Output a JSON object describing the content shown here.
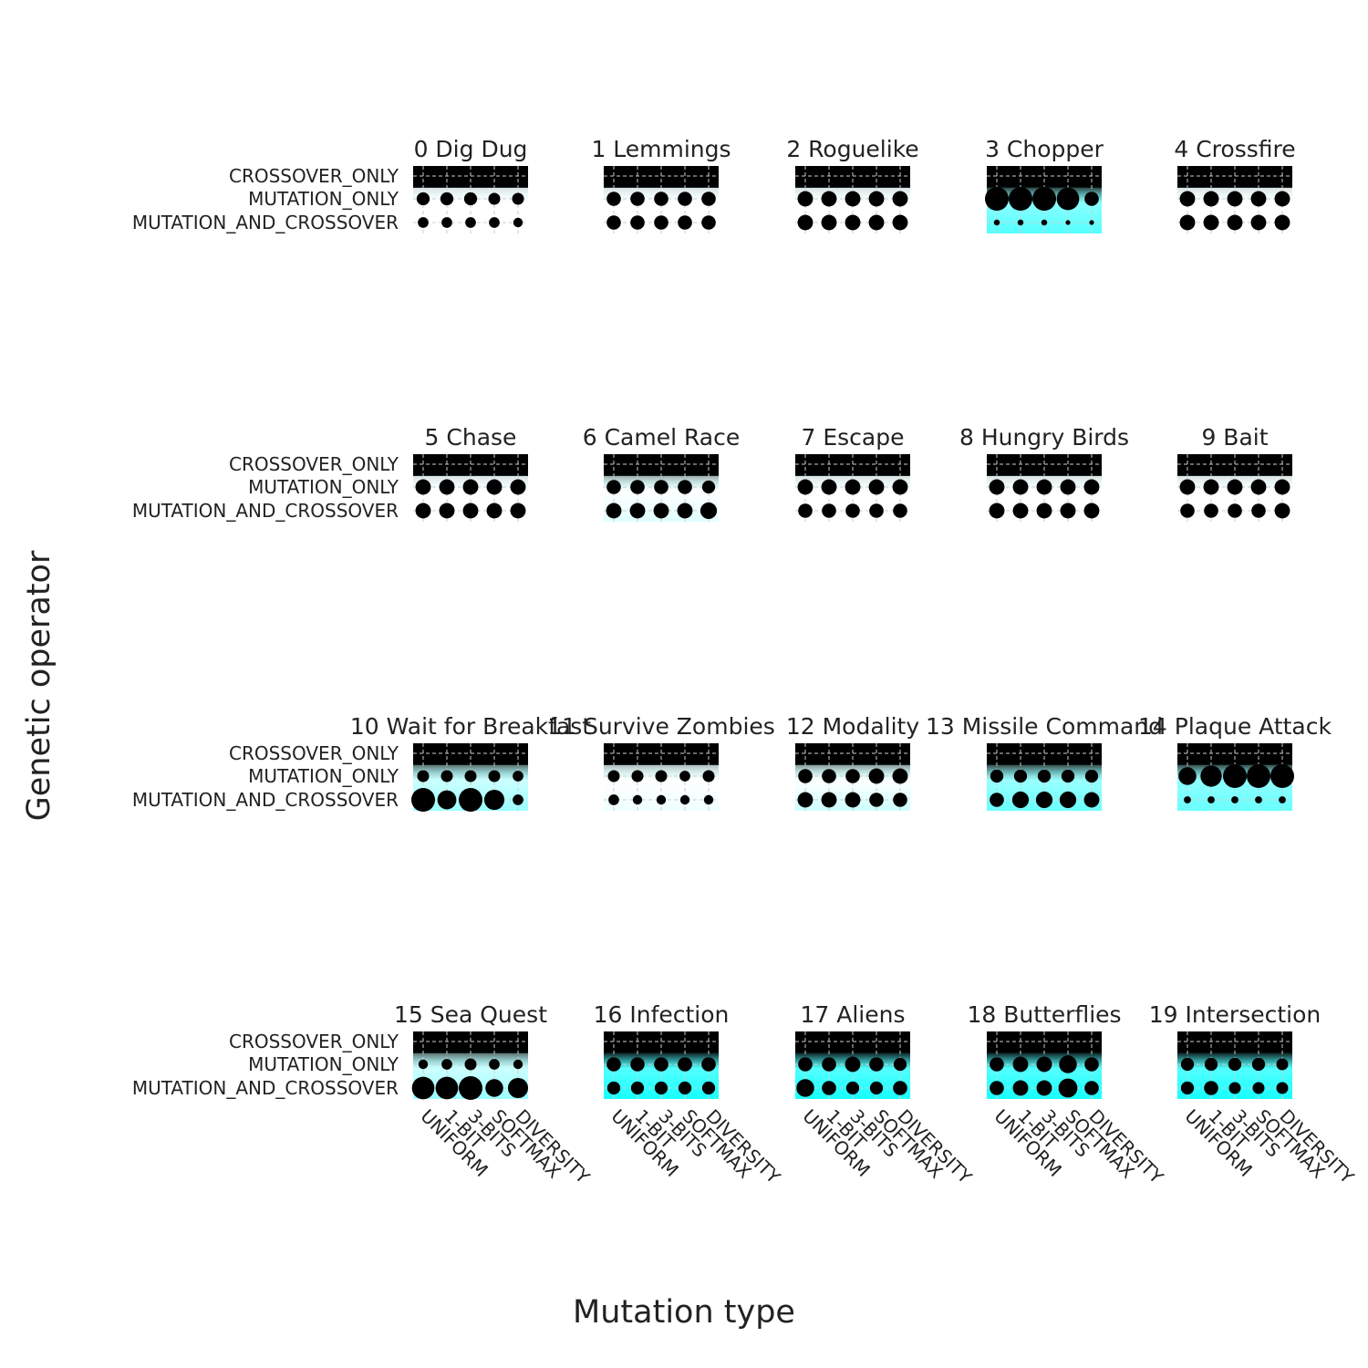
{
  "chart_data": {
    "type": "scatter",
    "title": "",
    "xlabel": "Mutation type",
    "ylabel": "Genetic operator",
    "x_categories": [
      "UNIFORM",
      "1-BIT",
      "3-BITS",
      "SOFTMAX",
      "DIVERSITY"
    ],
    "y_categories": [
      "CROSSOVER_ONLY",
      "MUTATION_ONLY",
      "MUTATION_AND_CROSSOVER"
    ],
    "encoding": "point size and background fill (black to cyan) encode relative value per cell",
    "colors": {
      "low": "#000000",
      "high": "#00ffff",
      "point": "#000000"
    },
    "panels": [
      {
        "title": "0 Dig Dug",
        "values": [
          [
            0,
            0,
            0,
            0,
            0
          ],
          [
            0.55,
            0.55,
            0.55,
            0.5,
            0.5
          ],
          [
            0.45,
            0.45,
            0.45,
            0.45,
            0.4
          ]
        ],
        "fill": [
          0,
          0,
          0
        ]
      },
      {
        "title": "1 Lemmings",
        "values": [
          [
            0,
            0,
            0,
            0,
            0
          ],
          [
            0.6,
            0.6,
            0.6,
            0.6,
            0.6
          ],
          [
            0.6,
            0.6,
            0.6,
            0.6,
            0.6
          ]
        ],
        "fill": [
          0,
          0,
          0
        ]
      },
      {
        "title": "2 Roguelike",
        "values": [
          [
            0,
            0,
            0,
            0,
            0
          ],
          [
            0.65,
            0.65,
            0.65,
            0.65,
            0.65
          ],
          [
            0.65,
            0.65,
            0.65,
            0.65,
            0.65
          ]
        ],
        "fill": [
          0,
          0,
          0
        ]
      },
      {
        "title": "3 Chopper",
        "values": [
          [
            0,
            0,
            0,
            0,
            0
          ],
          [
            1.0,
            1.0,
            1.0,
            0.95,
            0.6
          ],
          [
            0.25,
            0.25,
            0.25,
            0.2,
            0.2
          ]
        ],
        "fill": [
          0,
          0.55,
          0.8
        ]
      },
      {
        "title": "4 Crossfire",
        "values": [
          [
            0,
            0,
            0,
            0,
            0
          ],
          [
            0.65,
            0.65,
            0.65,
            0.65,
            0.65
          ],
          [
            0.65,
            0.65,
            0.65,
            0.65,
            0.65
          ]
        ],
        "fill": [
          0,
          0,
          0
        ]
      },
      {
        "title": "5 Chase",
        "values": [
          [
            0,
            0,
            0,
            0,
            0
          ],
          [
            0.65,
            0.65,
            0.65,
            0.65,
            0.65
          ],
          [
            0.65,
            0.65,
            0.65,
            0.65,
            0.65
          ]
        ],
        "fill": [
          0,
          0,
          0
        ]
      },
      {
        "title": "6 Camel Race",
        "values": [
          [
            0,
            0,
            0,
            0,
            0
          ],
          [
            0.6,
            0.6,
            0.6,
            0.6,
            0.55
          ],
          [
            0.65,
            0.65,
            0.65,
            0.65,
            0.7
          ]
        ],
        "fill": [
          0,
          0,
          0.3
        ]
      },
      {
        "title": "7 Escape",
        "values": [
          [
            0,
            0,
            0,
            0,
            0
          ],
          [
            0.65,
            0.65,
            0.65,
            0.65,
            0.65
          ],
          [
            0.6,
            0.6,
            0.6,
            0.6,
            0.6
          ]
        ],
        "fill": [
          0,
          0,
          0
        ]
      },
      {
        "title": "8 Hungry Birds",
        "values": [
          [
            0,
            0,
            0,
            0,
            0
          ],
          [
            0.65,
            0.65,
            0.65,
            0.65,
            0.65
          ],
          [
            0.65,
            0.65,
            0.65,
            0.65,
            0.65
          ]
        ],
        "fill": [
          0,
          0,
          0
        ]
      },
      {
        "title": "9 Bait",
        "values": [
          [
            0,
            0,
            0,
            0,
            0
          ],
          [
            0.65,
            0.65,
            0.65,
            0.65,
            0.65
          ],
          [
            0.6,
            0.6,
            0.6,
            0.6,
            0.65
          ]
        ],
        "fill": [
          0,
          0,
          0
        ]
      },
      {
        "title": "10 Wait for Breakfast",
        "values": [
          [
            0,
            0,
            0,
            0,
            0
          ],
          [
            0.5,
            0.5,
            0.5,
            0.5,
            0.45
          ],
          [
            1.0,
            0.8,
            1.0,
            0.85,
            0.45
          ]
        ],
        "fill": [
          0,
          0.3,
          0.6
        ]
      },
      {
        "title": "11 Survive Zombies",
        "values": [
          [
            0,
            0,
            0,
            0,
            0
          ],
          [
            0.5,
            0.5,
            0.5,
            0.45,
            0.5
          ],
          [
            0.45,
            0.4,
            0.4,
            0.4,
            0.4
          ]
        ],
        "fill": [
          0,
          0,
          0.2
        ]
      },
      {
        "title": "12 Modality",
        "values": [
          [
            0,
            0,
            0,
            0,
            0
          ],
          [
            0.6,
            0.6,
            0.6,
            0.65,
            0.65
          ],
          [
            0.65,
            0.65,
            0.65,
            0.6,
            0.6
          ]
        ],
        "fill": [
          0,
          0,
          0.4
        ]
      },
      {
        "title": "13 Missile Command",
        "values": [
          [
            0,
            0,
            0,
            0,
            0
          ],
          [
            0.55,
            0.55,
            0.55,
            0.55,
            0.55
          ],
          [
            0.6,
            0.7,
            0.7,
            0.7,
            0.65
          ]
        ],
        "fill": [
          0,
          0.5,
          0.75
        ]
      },
      {
        "title": "14 Plaque Attack",
        "values": [
          [
            0,
            0,
            0,
            0,
            0
          ],
          [
            0.75,
            0.9,
            1.0,
            1.0,
            1.0
          ],
          [
            0.3,
            0.3,
            0.3,
            0.3,
            0.3
          ]
        ],
        "fill": [
          0,
          0.55,
          0.75
        ]
      },
      {
        "title": "15 Sea Quest",
        "values": [
          [
            0,
            0,
            0,
            0,
            0
          ],
          [
            0.4,
            0.45,
            0.5,
            0.45,
            0.4
          ],
          [
            0.95,
            0.95,
            1.0,
            0.75,
            0.85
          ]
        ],
        "fill": [
          0,
          0.3,
          0.6
        ]
      },
      {
        "title": "16 Infection",
        "values": [
          [
            0,
            0,
            0,
            0,
            0
          ],
          [
            0.6,
            0.6,
            0.6,
            0.6,
            0.6
          ],
          [
            0.55,
            0.55,
            0.55,
            0.55,
            0.55
          ]
        ],
        "fill": [
          0,
          0.7,
          0.95
        ]
      },
      {
        "title": "17 Aliens",
        "values": [
          [
            0,
            0,
            0,
            0,
            0
          ],
          [
            0.6,
            0.6,
            0.65,
            0.6,
            0.55
          ],
          [
            0.75,
            0.6,
            0.55,
            0.55,
            0.6
          ]
        ],
        "fill": [
          0,
          0.7,
          0.95
        ]
      },
      {
        "title": "18 Butterflies",
        "values": [
          [
            0,
            0,
            0,
            0,
            0
          ],
          [
            0.6,
            0.65,
            0.65,
            0.75,
            0.6
          ],
          [
            0.6,
            0.65,
            0.65,
            0.8,
            0.6
          ]
        ],
        "fill": [
          0,
          0.7,
          0.95
        ]
      },
      {
        "title": "19 Intersection",
        "values": [
          [
            0,
            0,
            0,
            0,
            0
          ],
          [
            0.55,
            0.55,
            0.55,
            0.55,
            0.5
          ],
          [
            0.55,
            0.6,
            0.5,
            0.5,
            0.5
          ]
        ],
        "fill": [
          0,
          0.7,
          0.95
        ]
      }
    ]
  }
}
